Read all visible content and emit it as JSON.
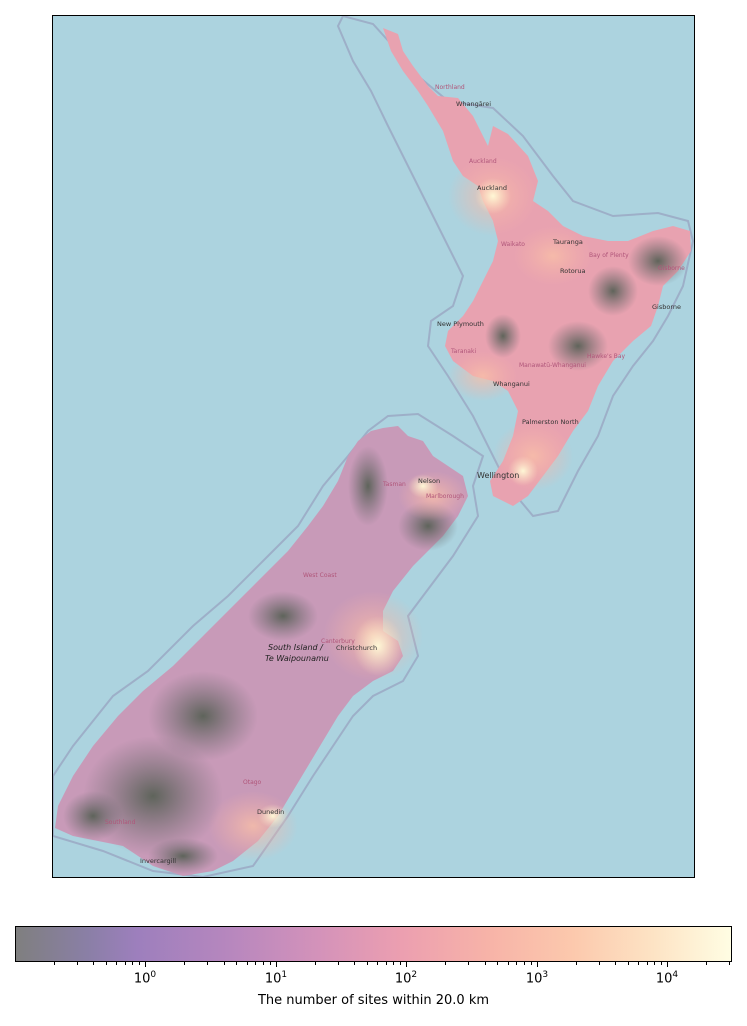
{
  "map": {
    "ocean_color": "#acd3df",
    "place_labels": {
      "northland": "Northland",
      "whangarei": "Whangārei",
      "auckland_region": "Auckland",
      "auckland": "Auckland",
      "waikato": "Waikato",
      "tauranga": "Tauranga",
      "bay_of_plenty": "Bay of Plenty",
      "rotorua": "Rotorua",
      "gisborne_region": "Gisborne",
      "gisborne": "Gisborne",
      "new_plymouth": "New Plymouth",
      "taranaki": "Taranaki",
      "manawatu": "Manawatū-Whanganui",
      "hawkes_bay": "Hawke's Bay",
      "whanganui": "Whanganui",
      "palmerston_north": "Palmerston North",
      "wellington": "Wellington",
      "nelson": "Nelson",
      "tasman": "Tasman",
      "marlborough": "Marlborough",
      "west_coast": "West Coast",
      "canterbury": "Canterbury",
      "christchurch": "Christchurch",
      "south_island_1": "South Island /",
      "south_island_2": "Te Waipounamu",
      "otago": "Otago",
      "dunedin": "Dunedin",
      "southland": "Southland",
      "invercargill": "Invercargill"
    }
  },
  "colorbar": {
    "label": "The number of sites within 20.0 km",
    "scale": "log",
    "range": [
      0.15,
      30000
    ],
    "colors": [
      "#7f7f7f",
      "#9d7fbd",
      "#d392ba",
      "#f7b3a8",
      "#fffde3"
    ],
    "ticks": [
      {
        "base": "10",
        "exp": "0"
      },
      {
        "base": "10",
        "exp": "1"
      },
      {
        "base": "10",
        "exp": "2"
      },
      {
        "base": "10",
        "exp": "3"
      },
      {
        "base": "10",
        "exp": "4"
      }
    ]
  }
}
